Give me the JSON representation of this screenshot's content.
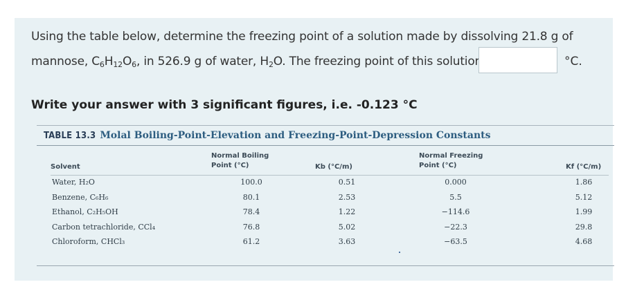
{
  "question": {
    "line1": "Using the table below, determine the freezing point of a solution made by dissolving 21.8 g of",
    "line2_pre": "mannose, C",
    "sub6a": "6",
    "h": "H",
    "sub12": "12",
    "o": "O",
    "sub6b": "6",
    "line2_mid": ", in 526.9 g of water, H",
    "sub2": "2",
    "line2_post": "O. The freezing point of this solution is",
    "unit": "°C.",
    "answer_value": "",
    "instruction": "Write your answer with 3 significant figures, i.e. -0.123 °C"
  },
  "table": {
    "label": "TABLE 13.3",
    "caption": "Molal Boiling-Point-Elevation and Freezing-Point-Depression Constants",
    "headers": {
      "solvent": "Solvent",
      "nbp_line1": "Normal Boiling",
      "nbp_line2": "Point (°C)",
      "kb": "Kb (°C/m)",
      "nfp_line1": "Normal Freezing",
      "nfp_line2": "Point (°C)",
      "kf": "Kf (°C/m)"
    },
    "rows": [
      {
        "solvent": "Water, H₂O",
        "nbp": "100.0",
        "kb": "0.51",
        "nfp": "0.000",
        "kf": "1.86"
      },
      {
        "solvent": "Benzene, C₆H₆",
        "nbp": "80.1",
        "kb": "2.53",
        "nfp": "5.5",
        "kf": "5.12"
      },
      {
        "solvent": "Ethanol, C₂H₅OH",
        "nbp": "78.4",
        "kb": "1.22",
        "nfp": "−114.6",
        "kf": "1.99"
      },
      {
        "solvent": "Carbon tetrachloride, CCl₄",
        "nbp": "76.8",
        "kb": "5.02",
        "nfp": "−22.3",
        "kf": "29.8"
      },
      {
        "solvent": "Chloroform, CHCl₃",
        "nbp": "61.2",
        "kb": "3.63",
        "nfp": "−63.5",
        "kf": "4.68"
      }
    ]
  }
}
